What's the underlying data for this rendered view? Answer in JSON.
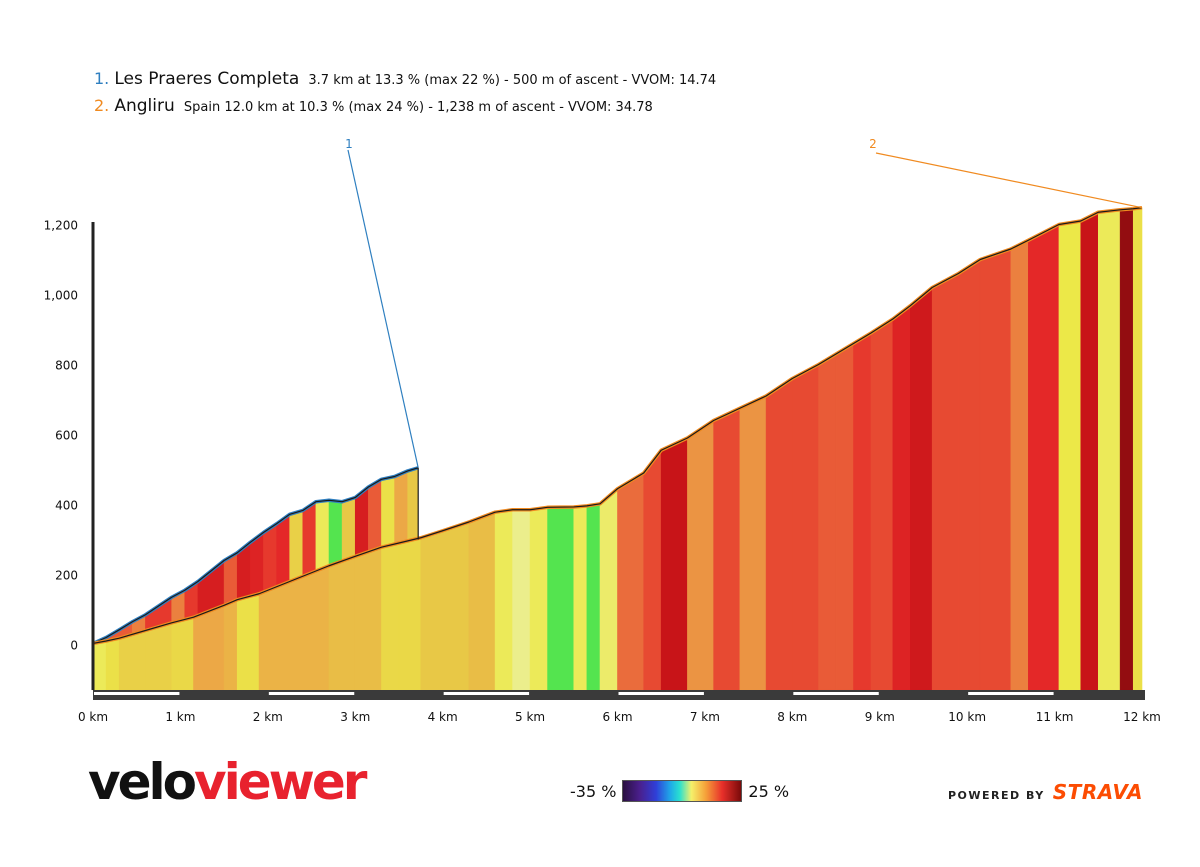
{
  "legend": {
    "items": [
      {
        "number": "1.",
        "name": "Les Praeres Completa",
        "desc": "3.7 km at 13.3 % (max 22 %) - 500 m of ascent - VVOM: 14.74",
        "color": "#2f7fc0"
      },
      {
        "number": "2.",
        "name": "Angliru",
        "desc": "Spain 12.0 km at 10.3 % (max 24 %) - 1,238 m of ascent - VVOM: 34.78",
        "color": "#f08a20"
      }
    ]
  },
  "chart_data": {
    "type": "area",
    "xlabel": "",
    "ylabel": "",
    "xlim": [
      0,
      12
    ],
    "ylim": [
      -130,
      1270
    ],
    "x_ticks": [
      "0 km",
      "1 km",
      "2 km",
      "3 km",
      "4 km",
      "5 km",
      "6 km",
      "7 km",
      "8 km",
      "9 km",
      "10 km",
      "11 km",
      "12 km"
    ],
    "y_ticks": [
      {
        "value": 0,
        "label": "0"
      },
      {
        "value": 200,
        "label": "200"
      },
      {
        "value": 400,
        "label": "400"
      },
      {
        "value": 600,
        "label": "600"
      },
      {
        "value": 800,
        "label": "800"
      },
      {
        "value": 1000,
        "label": "1,000"
      },
      {
        "value": 1200,
        "label": "1,200"
      }
    ],
    "grade_scale": {
      "min_label": "-35 %",
      "max_label": "25 %"
    },
    "series": [
      {
        "marker": "1",
        "color": "#2f7fc0",
        "x": [
          0,
          0.15,
          0.3,
          0.45,
          0.6,
          0.75,
          0.9,
          1.05,
          1.2,
          1.35,
          1.5,
          1.65,
          1.8,
          1.95,
          2.1,
          2.25,
          2.4,
          2.55,
          2.7,
          2.85,
          3.0,
          3.15,
          3.3,
          3.45,
          3.6,
          3.72
        ],
        "elevation": [
          3,
          20,
          42,
          65,
          85,
          110,
          135,
          155,
          180,
          210,
          240,
          262,
          292,
          320,
          345,
          372,
          383,
          408,
          412,
          408,
          420,
          450,
          472,
          480,
          496,
          505
        ],
        "grade": [
          11,
          15,
          15,
          13,
          17,
          17,
          13,
          17,
          20,
          20,
          15,
          20,
          19,
          17,
          18,
          7,
          17,
          3,
          -3,
          8,
          20,
          15,
          5,
          11,
          8
        ]
      },
      {
        "marker": "2",
        "color": "#f08a20",
        "x": [
          0,
          0.15,
          0.3,
          0.6,
          0.9,
          1.15,
          1.5,
          1.65,
          1.9,
          2.3,
          2.7,
          3.0,
          3.3,
          3.5,
          3.75,
          4.0,
          4.3,
          4.6,
          4.8,
          5.0,
          5.2,
          5.5,
          5.65,
          5.8,
          6.0,
          6.3,
          6.5,
          6.8,
          7.1,
          7.4,
          7.7,
          8.0,
          8.3,
          8.5,
          8.7,
          8.9,
          9.15,
          9.35,
          9.6,
          9.9,
          10.15,
          10.5,
          10.7,
          11.05,
          11.3,
          11.5,
          11.75,
          11.9,
          12.0
        ],
        "elevation": [
          3,
          10,
          18,
          40,
          62,
          78,
          112,
          128,
          145,
          185,
          225,
          252,
          278,
          290,
          305,
          325,
          350,
          378,
          385,
          385,
          392,
          393,
          396,
          402,
          445,
          490,
          555,
          590,
          640,
          675,
          710,
          760,
          800,
          830,
          860,
          890,
          930,
          968,
          1020,
          1060,
          1100,
          1130,
          1155,
          1200,
          1210,
          1235,
          1242,
          1245,
          1248
        ],
        "grade": [
          3,
          5,
          7,
          7,
          6,
          11,
          10,
          5,
          10,
          10,
          9,
          9,
          6,
          6,
          8,
          8,
          9,
          3,
          0,
          3,
          -3,
          3,
          -3,
          2,
          14,
          16,
          22,
          12,
          16,
          12,
          16,
          16,
          15,
          15,
          17,
          16,
          19,
          21,
          16,
          16,
          16,
          13,
          18,
          4,
          22,
          3,
          24,
          5
        ]
      }
    ]
  },
  "logo": {
    "part1": "velo",
    "part2": "viewer"
  },
  "powered": {
    "prefix": "POWERED BY",
    "brand": "STRAVA"
  }
}
